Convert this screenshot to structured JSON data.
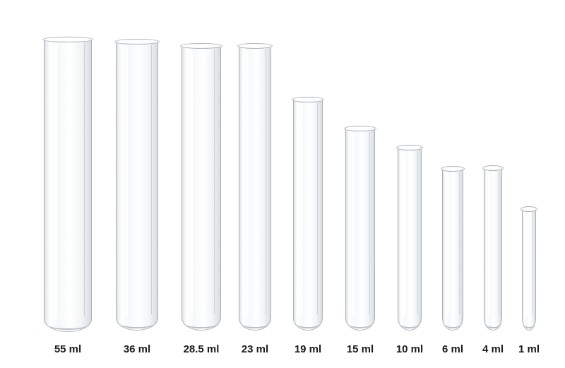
{
  "tubes": [
    {
      "label": "55 ml"
    },
    {
      "label": "36 ml"
    },
    {
      "label": "28.5 ml"
    },
    {
      "label": "23 ml"
    },
    {
      "label": "19 ml"
    },
    {
      "label": "15 ml"
    },
    {
      "label": "10 ml"
    },
    {
      "label": "6 ml"
    },
    {
      "label": "4 ml"
    },
    {
      "label": "1 ml"
    }
  ]
}
